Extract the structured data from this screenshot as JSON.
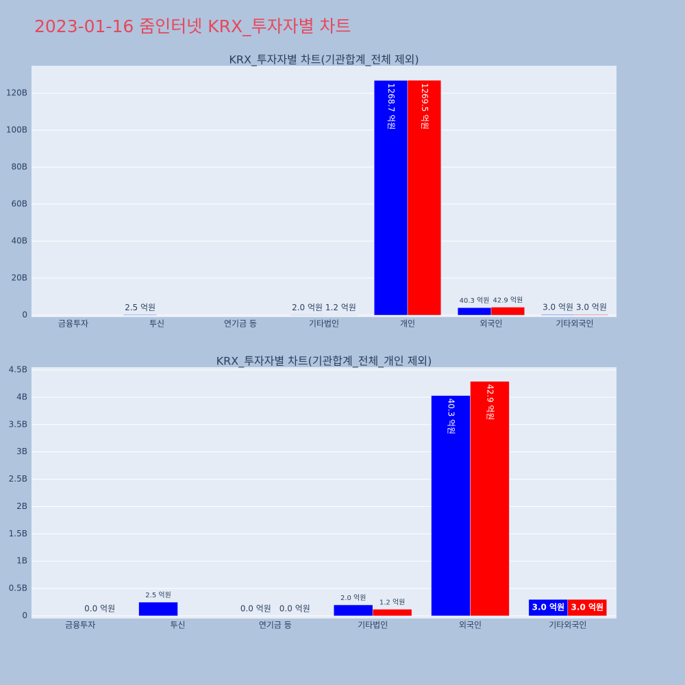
{
  "title": "2023-01-16 줌인터넷 KRX_투자자별 차트",
  "chart_data": [
    {
      "type": "bar",
      "title": "KRX_투자자별 차트(기관합계_전체 제외)",
      "categories": [
        "금융투자",
        "투신",
        "연기금 등",
        "기타법인",
        "개인",
        "외국인",
        "기타외국인"
      ],
      "series": [
        {
          "color": "#0000ff",
          "values": [
            null,
            250000000,
            0,
            200000000,
            126870000000,
            4030000000,
            300000000
          ],
          "value_labels": [
            null,
            "2.5 억원",
            null,
            "2.0 억원",
            "1268.7 억원",
            "40.3 억원",
            "3.0 억원"
          ]
        },
        {
          "color": "#ff0000",
          "values": [
            0,
            null,
            0,
            120000000,
            126950000000,
            4290000000,
            300000000
          ],
          "value_labels": [
            null,
            null,
            null,
            "1.2 억원",
            "1269.5 억원",
            "42.9 억원",
            "3.0 억원"
          ]
        }
      ],
      "ylim": [
        -1100000000,
        134800000000
      ],
      "yticks": [
        0,
        {
          "value": 20000000000,
          "label": "20B"
        },
        {
          "value": 40000000000,
          "label": "40B"
        },
        {
          "value": 60000000000,
          "label": "60B"
        },
        {
          "value": 80000000000,
          "label": "80B"
        },
        {
          "value": 100000000000,
          "label": "100B"
        },
        {
          "value": 120000000000,
          "label": "120B"
        }
      ],
      "grid": true
    },
    {
      "type": "bar",
      "title": "KRX_투자자별 차트(기관합계_전체_개인 제외)",
      "categories": [
        "금융투자",
        "투신",
        "연기금 등",
        "기타법인",
        "외국인",
        "기타외국인"
      ],
      "series": [
        {
          "color": "#0000ff",
          "values": [
            null,
            250000000,
            0,
            200000000,
            4030000000,
            300000000
          ],
          "value_labels": [
            null,
            "2.5 억원",
            "0.0 억원",
            "2.0 억원",
            "40.3 억원",
            "3.0 억원"
          ]
        },
        {
          "color": "#ff0000",
          "values": [
            0,
            null,
            0,
            120000000,
            4290000000,
            300000000
          ],
          "value_labels": [
            "0.0 억원",
            null,
            "0.0 억원",
            "1.2 억원",
            "42.9 억원",
            "3.0 억원"
          ]
        }
      ],
      "ylim": [
        -50000000,
        4550000000
      ],
      "yticks": [
        0,
        {
          "value": 500000000,
          "label": "0.5B"
        },
        {
          "value": 1000000000,
          "label": "1B"
        },
        {
          "value": 1500000000,
          "label": "1.5B"
        },
        {
          "value": 2000000000,
          "label": "2B"
        },
        {
          "value": 2500000000,
          "label": "2.5B"
        },
        {
          "value": 3000000000,
          "label": "3B"
        },
        {
          "value": 3500000000,
          "label": "3.5B"
        },
        {
          "value": 4000000000,
          "label": "4B"
        },
        {
          "value": 4500000000,
          "label": "4.5B"
        }
      ],
      "grid": true
    }
  ]
}
